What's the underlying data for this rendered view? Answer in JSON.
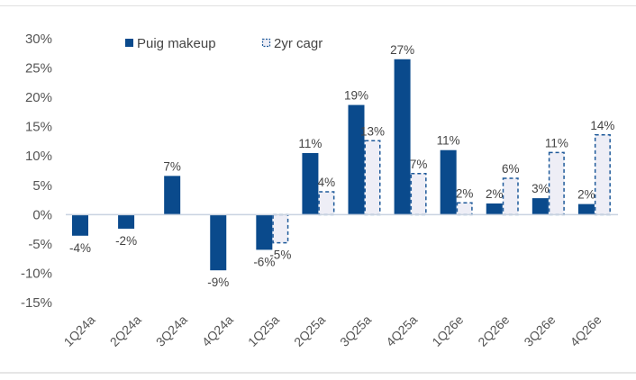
{
  "chart_data": {
    "type": "bar",
    "title": "",
    "xlabel": "",
    "ylabel": "",
    "ylim": [
      -15,
      30
    ],
    "yticks": [
      30,
      25,
      20,
      15,
      10,
      5,
      0,
      -5,
      -10,
      -15
    ],
    "ytick_labels": [
      "30%",
      "25%",
      "20%",
      "15%",
      "10%",
      "5%",
      "0%",
      "-5%",
      "-10%",
      "-15%"
    ],
    "grid": false,
    "legend_position": "top",
    "categories": [
      "1Q24a",
      "2Q24a",
      "3Q24a",
      "4Q24a",
      "1Q25a",
      "2Q25a",
      "3Q25a",
      "4Q25a",
      "1Q26e",
      "2Q26e",
      "3Q26e",
      "4Q26e"
    ],
    "series": [
      {
        "name": "Puig makeup",
        "color": "#0a4a8c",
        "style": "solid",
        "values": [
          -3.6,
          -2.4,
          6.6,
          -9.5,
          -6.0,
          10.5,
          18.7,
          26.5,
          11.0,
          1.9,
          2.8,
          1.8
        ],
        "labels": [
          "-4%",
          "-2%",
          "7%",
          "-9%",
          "-6%",
          "11%",
          "19%",
          "27%",
          "11%",
          "2%",
          "3%",
          "2%"
        ]
      },
      {
        "name": "2yr cagr",
        "color": "#1f5a9a",
        "fill": "#eeeef6",
        "style": "dashed",
        "values": [
          null,
          null,
          null,
          null,
          -4.8,
          3.9,
          12.6,
          7.0,
          2.0,
          6.2,
          10.6,
          13.6
        ],
        "labels": [
          null,
          null,
          null,
          null,
          "-5%",
          "4%",
          "13%",
          "7%",
          "2%",
          "6%",
          "11%",
          "14%"
        ]
      }
    ]
  }
}
